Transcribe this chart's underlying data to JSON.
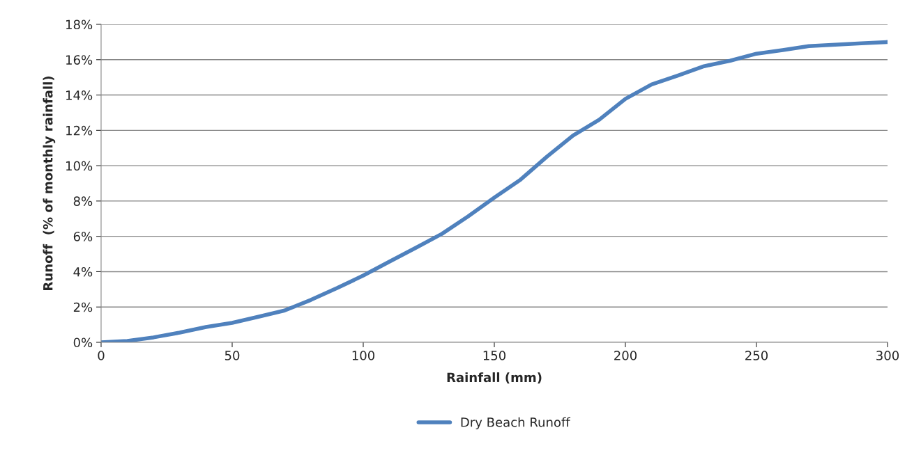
{
  "chart_data": {
    "type": "line",
    "xlabel": "Rainfall (mm)",
    "ylabel": "Runoff  (% of monthly rainfall)",
    "x": [
      0,
      10,
      20,
      30,
      40,
      50,
      60,
      70,
      80,
      90,
      100,
      110,
      120,
      130,
      140,
      150,
      160,
      170,
      180,
      190,
      200,
      210,
      220,
      230,
      240,
      250,
      260,
      270,
      280,
      290,
      300
    ],
    "series": [
      {
        "name": "Dry Beach Runoff",
        "color": "#4f81bd",
        "values": [
          0,
          0.08,
          0.28,
          0.55,
          0.87,
          1.1,
          1.45,
          1.8,
          2.4,
          3.07,
          3.78,
          4.57,
          5.35,
          6.14,
          7.13,
          8.19,
          9.21,
          10.5,
          11.7,
          12.6,
          13.78,
          14.6,
          15.1,
          15.63,
          15.94,
          16.34,
          16.54,
          16.77,
          16.85,
          16.93,
          17.0
        ]
      }
    ],
    "xlim": [
      0,
      300
    ],
    "xticks": [
      0,
      50,
      100,
      150,
      200,
      250,
      300
    ],
    "ylim": [
      0,
      18
    ],
    "yticks": [
      {
        "value": 0,
        "label": "0%"
      },
      {
        "value": 2,
        "label": "2%"
      },
      {
        "value": 4,
        "label": "4%"
      },
      {
        "value": 6,
        "label": "6%"
      },
      {
        "value": 8,
        "label": "8%"
      },
      {
        "value": 10,
        "label": "10%"
      },
      {
        "value": 12,
        "label": "12%"
      },
      {
        "value": 14,
        "label": "14%"
      },
      {
        "value": 16,
        "label": "16%"
      },
      {
        "value": 18,
        "label": "18%"
      }
    ],
    "grid": "y",
    "legend": "bottom",
    "marker": "none",
    "line_style": "solid"
  }
}
